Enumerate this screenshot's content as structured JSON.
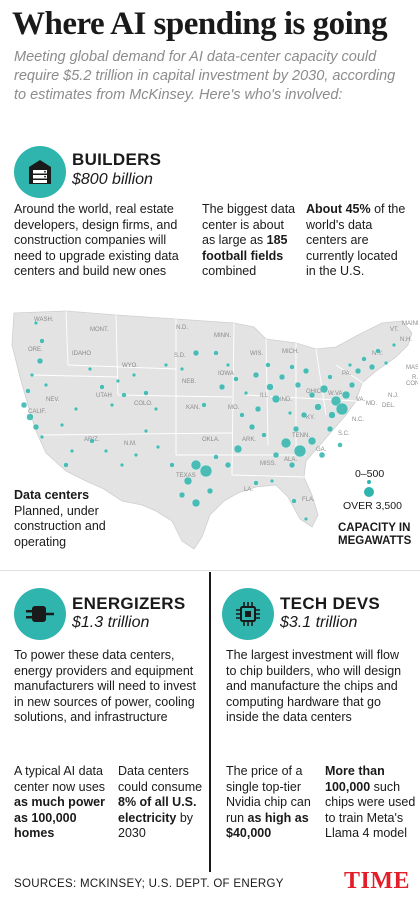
{
  "title": "Where AI spending is going",
  "subtitle": "Meeting global demand for AI data-center capacity could require $5.2 trillion in capital investment by 2030, according to estimates from McKinsey. Here's who's involved:",
  "builders": {
    "heading": "BUILDERS",
    "amount": "$800 billion",
    "body": "Around the world, real estate developers, design firms, and construction companies will need to upgrade existing data centers and build new ones",
    "fact1_pre": "The biggest data center is about as large as ",
    "fact1_bold": "185 football fields",
    "fact1_post": " combined",
    "fact2_bold": "About 45%",
    "fact2_post": " of the world's data centers are currently located in the U.S."
  },
  "map": {
    "states": [
      "WASH.",
      "MONT.",
      "N.D.",
      "MINN.",
      "ORE.",
      "IDAHO",
      "WYO.",
      "S.D.",
      "WIS.",
      "MICH.",
      "IOWA",
      "NEB.",
      "NEV.",
      "UTAH",
      "COLO.",
      "CALIF.",
      "KAN.",
      "MO.",
      "ILL.",
      "IND.",
      "OHIO",
      "KY.",
      "ARIZ.",
      "N.M.",
      "OKLA.",
      "ARK.",
      "TENN.",
      "MISS.",
      "ALA.",
      "GA.",
      "TEXAS",
      "LA.",
      "FLA.",
      "S.C.",
      "N.C.",
      "VA.",
      "W.VA.",
      "PA.",
      "N.Y.",
      "VT.",
      "N.H.",
      "MAINE",
      "MASS.",
      "R.I.",
      "CONN.",
      "N.J.",
      "DEL.",
      "MD."
    ],
    "caption_bold": "Data centers",
    "caption": "Planned, under construction and operating",
    "legend_small": "0–500",
    "legend_large": "OVER 3,500",
    "legend_title": "CAPACITY IN MEGAWATTS",
    "dot_color": "#2fb5ad",
    "land_color": "#e3e3e3"
  },
  "energizers": {
    "heading": "ENERGIZERS",
    "amount": "$1.3 trillion",
    "body": "To power these data centers, energy providers and equipment manufacturers will need to invest in new sources of power, cooling solutions, and infrastructure",
    "fact1_pre": "A typical AI data center now uses ",
    "fact1_bold": "as much power as 100,000 homes",
    "fact2_pre": "Data centers could consume ",
    "fact2_bold": "8% of all U.S. electricity",
    "fact2_post": " by 2030"
  },
  "techdevs": {
    "heading": "TECH DEVS",
    "amount": "$3.1 trillion",
    "body": "The largest investment will flow to chip builders, who will design and manufacture the chips and computing hardware that go inside the data centers",
    "fact1_pre": "The price of a single top-tier Nvidia chip can run ",
    "fact1_bold": "as high as $40,000",
    "fact2_bold": "More than 100,000",
    "fact2_post": " such chips were used to train Meta's Llama 4 model"
  },
  "sources": "SOURCES: MCKINSEY; U.S. DEPT. OF ENERGY",
  "logo": "TIME",
  "accent_color": "#2fb5ad",
  "logo_color": "#e41d2b"
}
